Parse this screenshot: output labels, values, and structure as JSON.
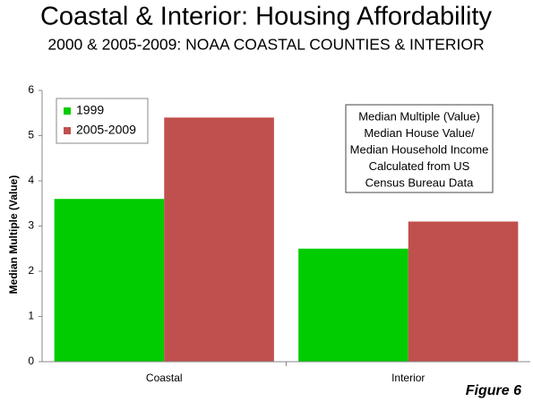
{
  "chart_data": {
    "type": "bar",
    "title": "Coastal & Interior: Housing Affordability",
    "subtitle": "2000 & 2005-2009: NOAA COASTAL COUNTIES & INTERIOR",
    "y_label": "Median Multiple (Value)",
    "categories": [
      "Coastal",
      "Interior"
    ],
    "series": [
      {
        "name": "1999",
        "color": "#00cc00",
        "values": [
          3.6,
          2.5
        ]
      },
      {
        "name": "2005-2009",
        "color": "#c0504d",
        "values": [
          5.4,
          3.1
        ]
      }
    ],
    "ylim": [
      0,
      6
    ],
    "yticks": [
      0,
      1,
      2,
      3,
      4,
      5,
      6
    ],
    "grid": false,
    "legend": "top-left",
    "annotation": [
      "Median Multiple (Value)",
      "Median House Value/",
      "Median Household Income",
      "Calculated from US",
      "Census Bureau Data"
    ],
    "figure_label": "Figure 6"
  }
}
